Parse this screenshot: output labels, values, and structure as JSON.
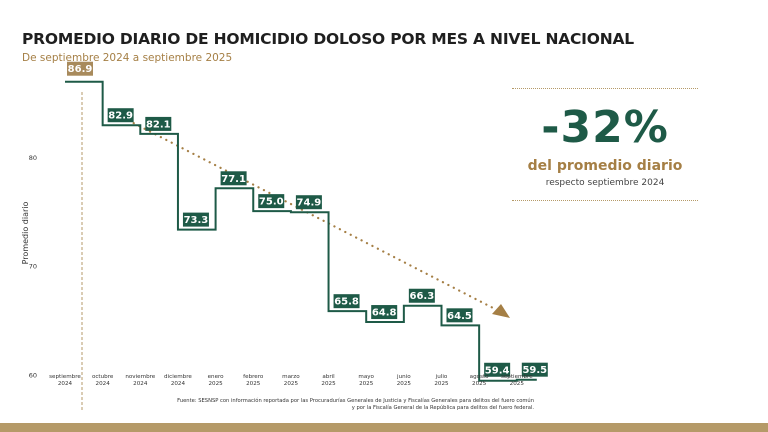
{
  "header": {
    "title": "PROMEDIO DIARIO DE HOMICIDIO DOLOSO POR MES A NIVEL NACIONAL",
    "subtitle": "De septiembre 2024 a septiembre 2025"
  },
  "kpi": {
    "value": "-32%",
    "label": "del promedio diario",
    "sublabel": "respecto septiembre 2024"
  },
  "source": {
    "line1": "Fuente: SESNSP con información reportada por las Procuradurías Generales de Justicia y Fiscalías Generales para delitos del fuero común",
    "line2": "y por la Fiscalía General de la República para delitos del fuero federal."
  },
  "colors": {
    "green": "#1e5a47",
    "gold": "#a57f45",
    "first_label": "#a88a5c"
  },
  "chart_data": {
    "type": "line",
    "step": true,
    "title": "PROMEDIO DIARIO DE HOMICIDIO DOLOSO POR MES A NIVEL NACIONAL",
    "ylabel": "Promedio diario",
    "xlabel": "",
    "ylim": [
      58,
      90
    ],
    "yticks": [
      60,
      70,
      80
    ],
    "grid": false,
    "categories": [
      [
        "septiembre",
        "2024"
      ],
      [
        "octubre",
        "2024"
      ],
      [
        "noviembre",
        "2024"
      ],
      [
        "diciembre",
        "2024"
      ],
      [
        "enero",
        "2025"
      ],
      [
        "febrero",
        "2025"
      ],
      [
        "marzo",
        "2025"
      ],
      [
        "abril",
        "2025"
      ],
      [
        "mayo",
        "2025"
      ],
      [
        "junio",
        "2025"
      ],
      [
        "julio",
        "2025"
      ],
      [
        "agosto",
        "2025"
      ],
      [
        "septiembre",
        "2025"
      ]
    ],
    "values": [
      86.9,
      82.9,
      82.1,
      73.3,
      77.1,
      75.0,
      74.9,
      65.8,
      64.8,
      66.3,
      64.5,
      59.4,
      59.5
    ],
    "value_labels": [
      "86.9",
      "82.9",
      "82.1",
      "73.3",
      "77.1",
      "75.0",
      "74.9",
      "65.8",
      "64.8",
      "66.3",
      "64.5",
      "59.4",
      "59.5"
    ],
    "trend": "decreasing",
    "legend": "none"
  }
}
